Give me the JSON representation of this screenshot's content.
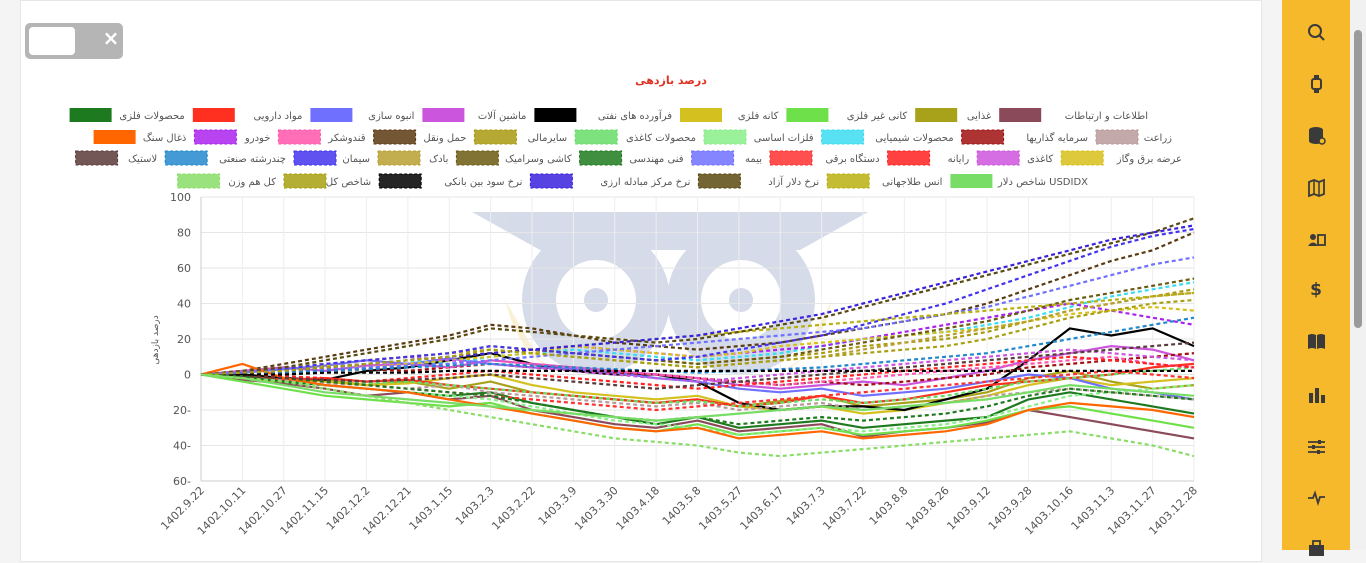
{
  "toggle": {
    "close_glyph": "×"
  },
  "sidebar": {
    "items": [
      {
        "icon": "search-icon"
      },
      {
        "icon": "watch-icon"
      },
      {
        "icon": "database-icon"
      },
      {
        "icon": "map-icon"
      },
      {
        "icon": "id-card-icon"
      },
      {
        "icon": "dollar-icon",
        "glyph": "$"
      },
      {
        "icon": "book-icon"
      },
      {
        "icon": "bar-chart-icon"
      },
      {
        "icon": "sliders-icon"
      },
      {
        "icon": "pulse-icon"
      },
      {
        "icon": "briefcase-icon"
      }
    ]
  },
  "chart_data": {
    "type": "line",
    "title": "درصد بازدهی",
    "ylabel": "درصد بازدهی",
    "xlabel": "",
    "ylim": [
      -60,
      100
    ],
    "yticks": [
      "-60",
      "-40",
      "-20",
      "0",
      "20",
      "40",
      "60",
      "80",
      "100"
    ],
    "ytick_labels": [
      "60-",
      "40-",
      "20-",
      "0",
      "20",
      "40",
      "60",
      "80",
      "100"
    ],
    "xticks": [
      "1402.9.22",
      "1402.10.11",
      "1402.10.27",
      "1402.11.15",
      "1402.12.2",
      "1402.12.21",
      "1403.1.15",
      "1403.2.3",
      "1403.2.22",
      "1403.3.9",
      "1403.3.30",
      "1403.4.18",
      "1403.5.8",
      "1403.5.27",
      "1403.6.17",
      "1403.7.3",
      "1403.7.22",
      "1403.8.8",
      "1403.8.26",
      "1403.9.12",
      "1403.9.28",
      "1403.10.16",
      "1403.11.3",
      "1403.11.27",
      "1403.12.28"
    ],
    "grid": true,
    "legend_position": "top",
    "series": [
      {
        "name": "اطلاعات و ارتباطات",
        "color": "#8b4a5a",
        "dash": false,
        "values": [
          0,
          -3,
          -5,
          -8,
          -12,
          -10,
          -14,
          -12,
          -20,
          -24,
          -28,
          -30,
          -26,
          -32,
          -30,
          -28,
          -35,
          -32,
          -30,
          -27,
          -20,
          -24,
          -28,
          -32,
          -36
        ]
      },
      {
        "name": "غذایی",
        "color": "#a8a21a",
        "dash": false,
        "values": [
          0,
          -2,
          -4,
          -3,
          -6,
          -4,
          -8,
          -4,
          -10,
          -12,
          -14,
          -16,
          -14,
          -18,
          -15,
          -12,
          -18,
          -16,
          -14,
          -10,
          -2,
          2,
          -4,
          -8,
          -6
        ]
      },
      {
        "name": "کانی غیر فلزی",
        "color": "#6ee04a",
        "dash": false,
        "values": [
          0,
          -4,
          -8,
          -12,
          -14,
          -16,
          -18,
          -16,
          -22,
          -26,
          -30,
          -32,
          -28,
          -34,
          -32,
          -30,
          -34,
          -32,
          -30,
          -26,
          -20,
          -18,
          -22,
          -26,
          -30
        ]
      },
      {
        "name": "کانه فلزی",
        "color": "#d4c01e",
        "dash": false,
        "values": [
          0,
          -1,
          -2,
          -4,
          -6,
          -5,
          -2,
          0,
          -6,
          -10,
          -12,
          -14,
          -12,
          -18,
          -20,
          -18,
          -22,
          -20,
          -16,
          -12,
          -6,
          -2,
          -6,
          -4,
          -2
        ]
      },
      {
        "name": "فرآورده های نفتی",
        "color": "#000000",
        "dash": false,
        "values": [
          0,
          0,
          -2,
          -3,
          2,
          4,
          8,
          12,
          6,
          2,
          0,
          0,
          -4,
          -16,
          -20,
          -18,
          -18,
          -20,
          -14,
          -8,
          8,
          26,
          22,
          26,
          16
        ]
      },
      {
        "name": "ماشین آلات",
        "color": "#cc55dd",
        "dash": false,
        "values": [
          0,
          2,
          4,
          2,
          5,
          6,
          4,
          8,
          6,
          4,
          2,
          0,
          -2,
          -6,
          -8,
          -6,
          -4,
          -6,
          -2,
          2,
          8,
          12,
          16,
          14,
          8
        ]
      },
      {
        "name": "انبوه سازی",
        "color": "#7070ff",
        "dash": false,
        "values": [
          0,
          1,
          3,
          5,
          8,
          6,
          9,
          6,
          4,
          3,
          1,
          -2,
          -4,
          -8,
          -10,
          -8,
          -12,
          -10,
          -8,
          -4,
          0,
          -2,
          -8,
          -10,
          -14
        ]
      },
      {
        "name": "مواد دارویی",
        "color": "#ff3020",
        "dash": false,
        "values": [
          0,
          -1,
          -3,
          -2,
          -4,
          -3,
          -6,
          -8,
          -10,
          -12,
          -14,
          -16,
          -14,
          -18,
          -16,
          -12,
          -16,
          -14,
          -10,
          -6,
          -4,
          -2,
          0,
          4,
          6
        ]
      },
      {
        "name": "محصولات فلزی",
        "color": "#1e7a1e",
        "dash": false,
        "values": [
          0,
          -1,
          -4,
          -6,
          -8,
          -10,
          -12,
          -10,
          -16,
          -20,
          -24,
          -28,
          -24,
          -30,
          -28,
          -26,
          -30,
          -28,
          -26,
          -24,
          -14,
          -10,
          -14,
          -18,
          -22
        ]
      },
      {
        "name": "زراعت",
        "color": "#b89a9a",
        "dash": true,
        "values": [
          0,
          -2,
          -3,
          -5,
          -6,
          -8,
          -6,
          -10,
          -12,
          -14,
          -16,
          -18,
          -16,
          -20,
          -18,
          -16,
          -20,
          -18,
          -16,
          -12,
          -10,
          -8,
          -10,
          -12,
          -14
        ]
      },
      {
        "name": "سرمایه گذاریها",
        "color": "#a01010",
        "dash": true,
        "values": [
          0,
          0,
          1,
          2,
          3,
          2,
          4,
          6,
          4,
          2,
          1,
          0,
          -2,
          -4,
          -6,
          -4,
          -6,
          -4,
          -2,
          0,
          4,
          6,
          8,
          10,
          12
        ]
      },
      {
        "name": "محصولات شیمیایی",
        "color": "#3adcf0",
        "dash": true,
        "values": [
          0,
          1,
          2,
          4,
          6,
          8,
          6,
          10,
          12,
          14,
          12,
          10,
          8,
          10,
          12,
          16,
          20,
          22,
          24,
          28,
          32,
          38,
          44,
          48,
          52
        ]
      },
      {
        "name": "فلزات اساسی",
        "color": "#88ee88",
        "dash": true,
        "values": [
          0,
          -2,
          -4,
          -6,
          -8,
          -10,
          -12,
          -14,
          -18,
          -22,
          -26,
          -28,
          -30,
          -34,
          -32,
          -30,
          -32,
          -30,
          -28,
          -24,
          -18,
          -12,
          -10,
          -8,
          -6
        ]
      },
      {
        "name": "محصولات کاغذی",
        "color": "#66dd66",
        "dash": true,
        "values": [
          0,
          -1,
          -2,
          -3,
          -5,
          -4,
          -6,
          -8,
          -10,
          -12,
          -14,
          -16,
          -15,
          -18,
          -16,
          -14,
          -16,
          -14,
          -12,
          -8,
          -4,
          -2,
          0,
          2,
          4
        ]
      },
      {
        "name": "سایرمالی",
        "color": "#a89a10",
        "dash": true,
        "values": [
          0,
          1,
          3,
          6,
          8,
          10,
          12,
          16,
          14,
          12,
          10,
          8,
          6,
          8,
          10,
          12,
          16,
          18,
          20,
          24,
          30,
          36,
          40,
          44,
          48
        ]
      },
      {
        "name": "حمل ونقل",
        "color": "#5a3a10",
        "dash": true,
        "values": [
          0,
          2,
          6,
          10,
          14,
          18,
          22,
          28,
          26,
          22,
          18,
          16,
          14,
          16,
          18,
          22,
          26,
          30,
          34,
          40,
          48,
          56,
          64,
          70,
          80
        ]
      },
      {
        "name": "قندوشکر",
        "color": "#ff55aa",
        "dash": true,
        "values": [
          0,
          0,
          2,
          4,
          3,
          6,
          4,
          8,
          6,
          4,
          2,
          0,
          -2,
          -4,
          -6,
          -4,
          -2,
          0,
          2,
          4,
          6,
          8,
          10,
          6,
          4
        ]
      },
      {
        "name": "خودرو",
        "color": "#aa22ee",
        "dash": true,
        "values": [
          0,
          1,
          2,
          4,
          6,
          8,
          10,
          12,
          14,
          16,
          14,
          12,
          10,
          12,
          14,
          16,
          20,
          24,
          28,
          32,
          36,
          40,
          36,
          32,
          28
        ]
      },
      {
        "name": "ذغال سنگ",
        "color": "#ff6600",
        "dash": false,
        "values": [
          0,
          6,
          -2,
          -6,
          -8,
          -10,
          -14,
          -18,
          -22,
          -26,
          -30,
          -32,
          -30,
          -36,
          -34,
          -32,
          -36,
          -34,
          -32,
          -28,
          -20,
          -16,
          -18,
          -20,
          -24
        ]
      },
      {
        "name": "عرضه برق وگاز",
        "color": "#d8c01a",
        "dash": true,
        "values": [
          0,
          1,
          3,
          5,
          4,
          6,
          8,
          10,
          12,
          16,
          14,
          12,
          10,
          12,
          16,
          18,
          20,
          22,
          24,
          26,
          30,
          34,
          36,
          38,
          36
        ]
      },
      {
        "name": "کاغذی",
        "color": "#cc55dd",
        "dash": true,
        "values": [
          0,
          2,
          4,
          6,
          8,
          10,
          8,
          6,
          4,
          2,
          0,
          -2,
          -4,
          -2,
          0,
          2,
          4,
          6,
          8,
          10,
          12,
          14,
          12,
          10,
          8
        ]
      },
      {
        "name": "رایانه",
        "color": "#ff2020",
        "dash": true,
        "values": [
          0,
          0,
          -1,
          -2,
          -4,
          -2,
          0,
          2,
          0,
          -2,
          -4,
          -6,
          -8,
          -6,
          -4,
          -2,
          0,
          2,
          4,
          6,
          8,
          10,
          8,
          6,
          4
        ]
      },
      {
        "name": "دستگاه برقی",
        "color": "#ff3030",
        "dash": true,
        "values": [
          0,
          -1,
          -2,
          -4,
          -6,
          -8,
          -10,
          -12,
          -14,
          -16,
          -18,
          -20,
          -18,
          -16,
          -14,
          -12,
          -10,
          -8,
          -6,
          -4,
          -2,
          0,
          2,
          0,
          -2
        ]
      },
      {
        "name": "بیمه",
        "color": "#7070ff",
        "dash": true,
        "values": [
          0,
          1,
          2,
          3,
          4,
          5,
          6,
          8,
          10,
          12,
          14,
          16,
          18,
          20,
          22,
          24,
          26,
          30,
          34,
          38,
          44,
          50,
          56,
          62,
          66
        ]
      },
      {
        "name": "فنی مهندسی",
        "color": "#1e7a1e",
        "dash": true,
        "values": [
          0,
          -1,
          -2,
          -4,
          -6,
          -8,
          -10,
          -12,
          -16,
          -20,
          -24,
          -26,
          -24,
          -28,
          -26,
          -24,
          -26,
          -24,
          -22,
          -18,
          -12,
          -8,
          -10,
          -12,
          -14
        ]
      },
      {
        "name": "کاشی وسرامیک",
        "color": "#6b5a10",
        "dash": true,
        "values": [
          0,
          1,
          2,
          4,
          6,
          8,
          10,
          12,
          14,
          12,
          10,
          8,
          6,
          8,
          10,
          14,
          18,
          22,
          26,
          30,
          36,
          42,
          46,
          50,
          54
        ]
      },
      {
        "name": "بادک",
        "color": "#b8a030",
        "dash": true,
        "values": [
          0,
          2,
          4,
          6,
          8,
          10,
          12,
          14,
          12,
          10,
          8,
          6,
          4,
          6,
          8,
          10,
          14,
          18,
          22,
          26,
          30,
          36,
          40,
          44,
          46
        ]
      },
      {
        "name": "سیمان",
        "color": "#4433ee",
        "dash": true,
        "values": [
          0,
          1,
          3,
          6,
          8,
          10,
          12,
          16,
          14,
          12,
          10,
          8,
          10,
          14,
          18,
          22,
          28,
          34,
          40,
          48,
          56,
          64,
          72,
          78,
          82
        ]
      },
      {
        "name": "چندرشته صنعتی",
        "color": "#2288cc",
        "dash": true,
        "values": [
          0,
          0,
          1,
          2,
          3,
          4,
          5,
          6,
          5,
          4,
          3,
          2,
          1,
          2,
          3,
          4,
          6,
          8,
          10,
          12,
          16,
          20,
          24,
          28,
          32
        ]
      },
      {
        "name": "لاستیک",
        "color": "#5a3a3a",
        "dash": true,
        "values": [
          0,
          -1,
          -2,
          -3,
          -4,
          -3,
          -2,
          0,
          -2,
          -4,
          -6,
          -8,
          -6,
          -4,
          -2,
          0,
          2,
          4,
          6,
          8,
          10,
          12,
          14,
          16,
          18
        ]
      },
      {
        "name": "شاخص دلار USDIDX",
        "color": "#77dd66",
        "dash": false,
        "values": [
          0,
          -2,
          -6,
          -10,
          -12,
          -14,
          -16,
          -18,
          -20,
          -22,
          -24,
          -26,
          -24,
          -22,
          -20,
          -18,
          -20,
          -18,
          -16,
          -14,
          -10,
          -6,
          -8,
          -10,
          -12
        ]
      },
      {
        "name": "انس طلاجهانی",
        "color": "#b8b010",
        "dash": true,
        "values": [
          0,
          1,
          2,
          4,
          6,
          8,
          10,
          12,
          14,
          16,
          18,
          20,
          22,
          24,
          26,
          28,
          30,
          32,
          34,
          36,
          38,
          40,
          42,
          44,
          46
        ]
      },
      {
        "name": "نرخ دلار آزاد",
        "color": "#5a4a10",
        "dash": true,
        "values": [
          0,
          2,
          4,
          8,
          12,
          16,
          20,
          26,
          24,
          22,
          20,
          18,
          20,
          24,
          28,
          32,
          38,
          44,
          50,
          56,
          62,
          68,
          74,
          80,
          88
        ]
      },
      {
        "name": "نرخ مرکز مبادله ارزی",
        "color": "#3a22dd",
        "dash": true,
        "values": [
          0,
          1,
          2,
          4,
          6,
          8,
          10,
          12,
          14,
          16,
          18,
          20,
          22,
          26,
          30,
          34,
          40,
          46,
          52,
          58,
          64,
          70,
          76,
          80,
          84
        ]
      },
      {
        "name": "نرخ سود بین بانکی",
        "color": "#000000",
        "dash": true,
        "values": [
          0,
          0,
          0,
          1,
          1,
          1,
          2,
          2,
          2,
          2,
          2,
          2,
          2,
          2,
          2,
          2,
          2,
          2,
          2,
          2,
          2,
          2,
          2,
          2,
          2
        ]
      },
      {
        "name": "شاخص کل",
        "color": "#a8a010",
        "dash": true,
        "values": [
          0,
          1,
          2,
          4,
          6,
          8,
          10,
          14,
          12,
          10,
          8,
          6,
          4,
          6,
          8,
          10,
          12,
          14,
          16,
          20,
          26,
          32,
          36,
          40,
          42
        ]
      },
      {
        "name": "کل هم وزن",
        "color": "#88dd66",
        "dash": true,
        "values": [
          0,
          -2,
          -4,
          -8,
          -12,
          -16,
          -20,
          -24,
          -28,
          -32,
          -36,
          -38,
          -40,
          -44,
          -46,
          -44,
          -42,
          -40,
          -38,
          -36,
          -34,
          -32,
          -36,
          -40,
          -46
        ]
      }
    ]
  }
}
